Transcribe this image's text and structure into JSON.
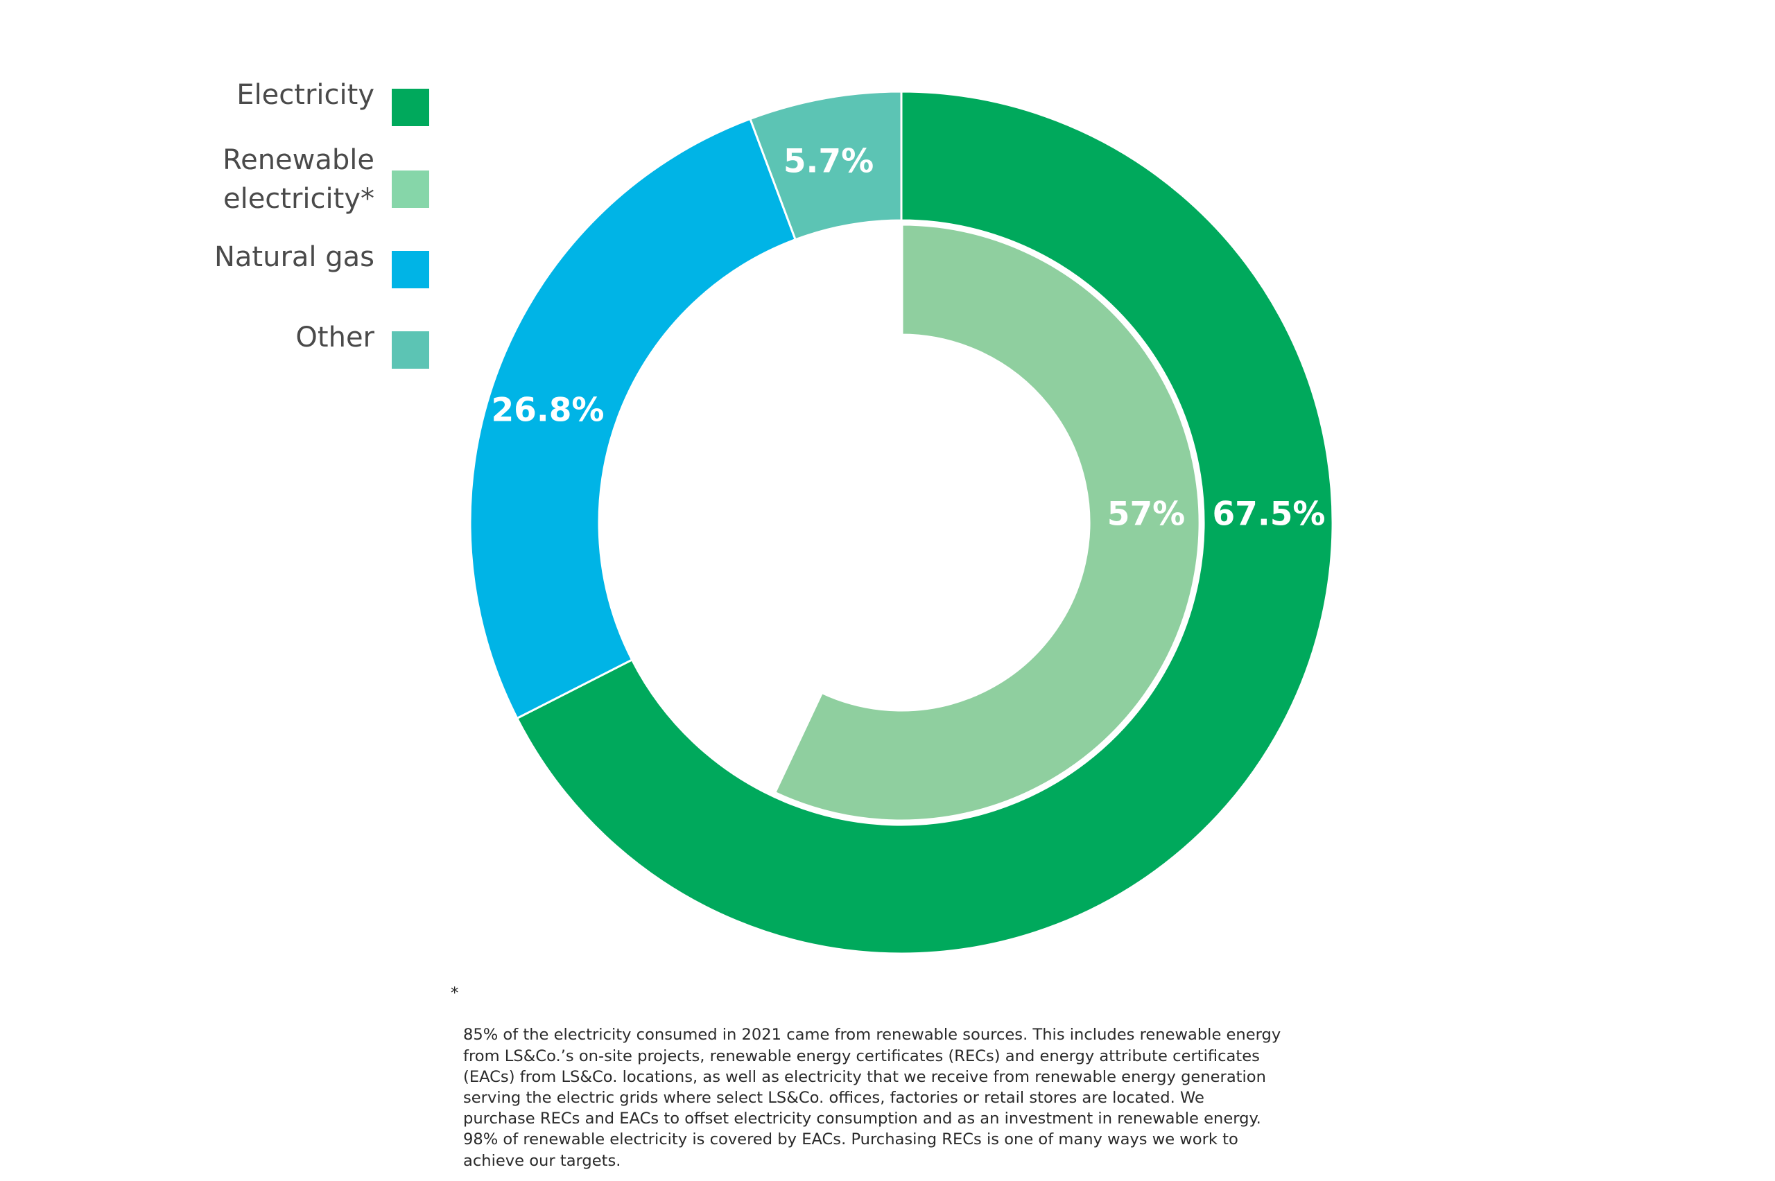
{
  "chart_data": {
    "type": "donut",
    "title": "",
    "legend": {
      "placement": "left",
      "entries": [
        {
          "label": "Electricity",
          "color": "#00a95c"
        },
        {
          "label": "Renewable\nelectricity*",
          "color": "#86d6a9"
        },
        {
          "label": "Natural gas",
          "color": "#00b4e6"
        },
        {
          "label": "Other",
          "color": "#5cc4b4"
        }
      ]
    },
    "outer_ring": {
      "series": [
        {
          "category": "Electricity",
          "value": 67.5,
          "label": "67.5%",
          "color": "#00a95c"
        },
        {
          "category": "Natural gas",
          "value": 26.8,
          "label": "26.8%",
          "color": "#00b4e6"
        },
        {
          "category": "Other",
          "value": 5.7,
          "label": "5.7%",
          "color": "#5cc4b4"
        }
      ]
    },
    "inner_ring": {
      "series": [
        {
          "category": "Renewable electricity*",
          "value": 57,
          "label": "57%",
          "color": "#8fcf9f"
        }
      ],
      "remainder_color": "#ffffff"
    }
  },
  "footnote": {
    "marker": "*",
    "text": "85% of the electricity consumed in 2021 came from renewable sources. This includes renewable energy\nfrom LS&Co.’s on-site projects, renewable energy certificates (RECs) and energy attribute certificates\n(EACs) from LS&Co. locations, as well as electricity that we receive from renewable energy generation\nserving the electric grids where select LS&Co. offices, factories or retail stores are located. We\npurchase RECs and EACs to offset electricity consumption and as an investment in renewable energy.\n98% of renewable electricity is covered by EACs. Purchasing RECs is one of many ways we work to\nachieve our targets."
  }
}
